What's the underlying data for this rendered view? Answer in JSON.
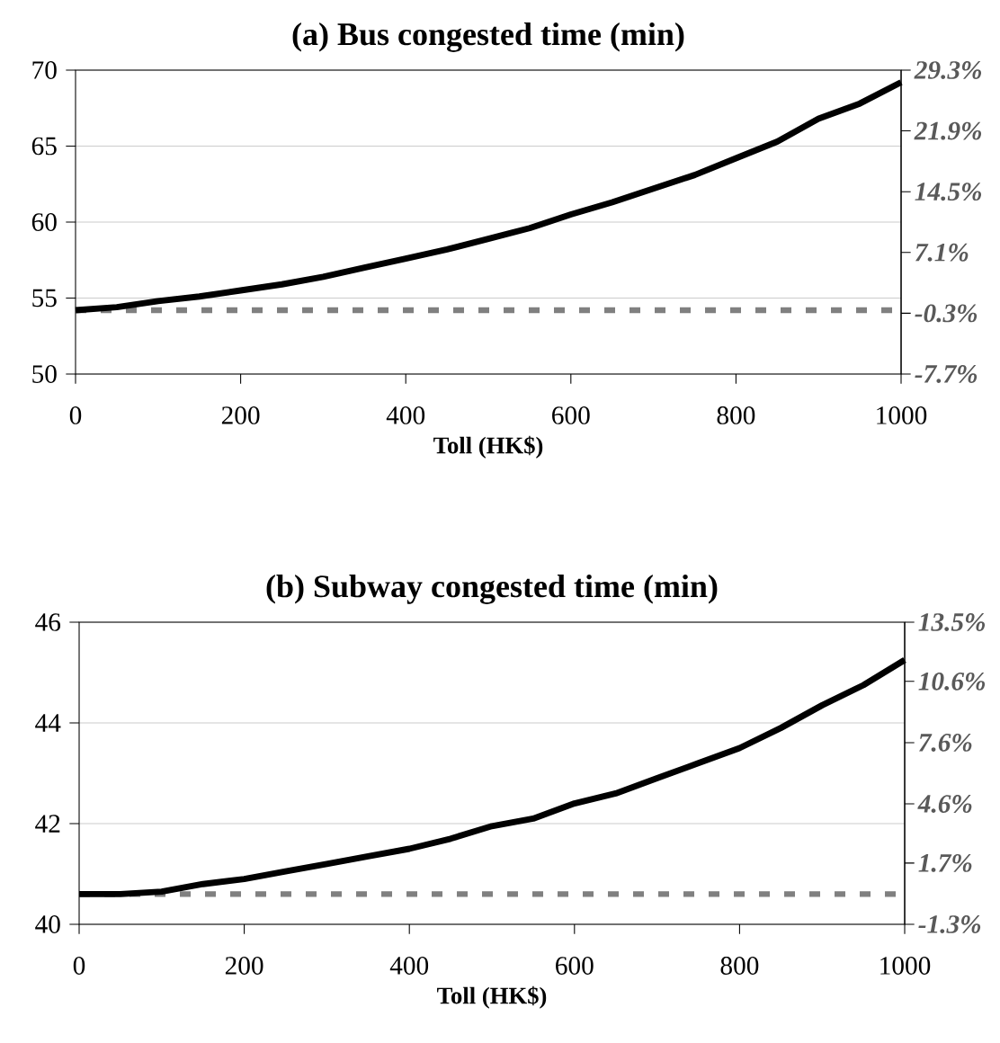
{
  "chart_data": [
    {
      "type": "line",
      "title": "(a) Bus congested time (min)",
      "xlabel": "Toll (HK$)",
      "x": [
        0,
        50,
        100,
        150,
        200,
        250,
        300,
        350,
        400,
        450,
        500,
        550,
        600,
        650,
        700,
        750,
        800,
        850,
        900,
        950,
        1000
      ],
      "series": [
        {
          "color": "#000000",
          "values": [
            54.2,
            54.4,
            54.8,
            55.1,
            55.5,
            55.9,
            56.4,
            57.0,
            57.6,
            58.2,
            58.9,
            59.6,
            60.5,
            61.3,
            62.2,
            63.1,
            64.2,
            65.3,
            66.8,
            67.8,
            69.2
          ]
        }
      ],
      "ref_lines": [
        {
          "axis": "y",
          "value": 54.2,
          "color": "#808080",
          "line_style": "dashed"
        }
      ],
      "xlim": [
        0,
        1000
      ],
      "xticks": [
        0,
        200,
        400,
        600,
        800,
        1000
      ],
      "ylim": [
        50,
        70
      ],
      "yticks": [
        50,
        55,
        60,
        65,
        70
      ],
      "y2lim": [
        -7.7,
        29.3
      ],
      "y2ticks": [
        {
          "value": -7.7,
          "label": "-7.7%"
        },
        {
          "value": -0.3,
          "label": "-0.3%"
        },
        {
          "value": 7.1,
          "label": "7.1%"
        },
        {
          "value": 14.5,
          "label": "14.5%"
        },
        {
          "value": 21.9,
          "label": "21.9%"
        },
        {
          "value": 29.3,
          "label": "29.3%"
        }
      ],
      "grid": "y",
      "marker": "none",
      "line_style": "solid"
    },
    {
      "type": "line",
      "title": "(b) Subway congested time (min)",
      "xlabel": "Toll (HK$)",
      "x": [
        0,
        50,
        100,
        150,
        200,
        250,
        300,
        350,
        400,
        450,
        500,
        550,
        600,
        650,
        700,
        750,
        800,
        850,
        900,
        950,
        1000
      ],
      "series": [
        {
          "color": "#000000",
          "values": [
            40.6,
            40.6,
            40.65,
            40.8,
            40.9,
            41.05,
            41.2,
            41.35,
            41.5,
            41.7,
            41.95,
            42.1,
            42.4,
            42.6,
            42.9,
            43.2,
            43.5,
            43.9,
            44.35,
            44.75,
            45.25
          ]
        }
      ],
      "ref_lines": [
        {
          "axis": "y",
          "value": 40.6,
          "color": "#808080",
          "line_style": "dashed"
        }
      ],
      "xlim": [
        0,
        1000
      ],
      "xticks": [
        0,
        200,
        400,
        600,
        800,
        1000
      ],
      "ylim": [
        40,
        46
      ],
      "yticks": [
        40,
        42,
        44,
        46
      ],
      "y2lim": [
        -1.3,
        13.5
      ],
      "y2ticks": [
        {
          "value": -1.3,
          "label": "-1.3%"
        },
        {
          "value": 1.7,
          "label": "1.7%"
        },
        {
          "value": 4.6,
          "label": "4.6%"
        },
        {
          "value": 7.6,
          "label": "7.6%"
        },
        {
          "value": 10.6,
          "label": "10.6%"
        },
        {
          "value": 13.5,
          "label": "13.5%"
        }
      ],
      "grid": "y",
      "marker": "none",
      "line_style": "solid"
    }
  ]
}
